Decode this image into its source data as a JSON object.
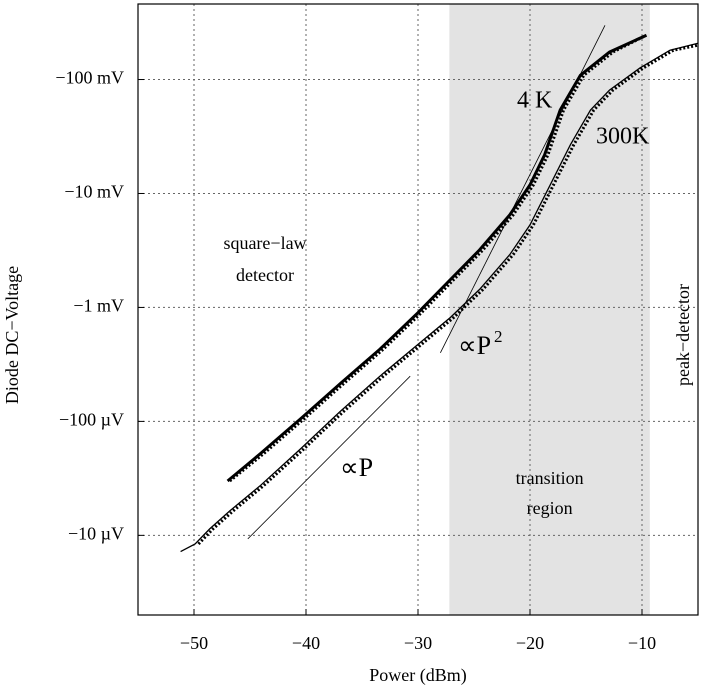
{
  "chart_data": {
    "type": "line",
    "xlabel": "Power (dBm)",
    "ylabel": "Diode DC−Voltage",
    "xlim": [
      -55,
      -5
    ],
    "ylim": [
      -0.002,
      -460
    ],
    "yscale": "log",
    "grid": true,
    "xticks": [
      {
        "value": -50,
        "label": "−50"
      },
      {
        "value": -40,
        "label": "−40"
      },
      {
        "value": -30,
        "label": "−30"
      },
      {
        "value": -20,
        "label": "−20"
      },
      {
        "value": -10,
        "label": "−10"
      }
    ],
    "yticks": [
      {
        "value": -0.01,
        "label": "−10 µV"
      },
      {
        "value": -0.1,
        "label": "−100 µV"
      },
      {
        "value": -1,
        "label": "−1 mV"
      },
      {
        "value": -10,
        "label": "−10 mV"
      },
      {
        "value": -100,
        "label": "−100 mV"
      }
    ],
    "shade": {
      "x": [
        -27.2,
        -9.3
      ],
      "color": "#e3e3e3",
      "label": [
        "transition",
        "region"
      ]
    },
    "series": [
      {
        "name": "4 K",
        "color": "#000000",
        "width": 3,
        "x": [
          -47.0,
          -44.1,
          -40.5,
          -37.0,
          -33.4,
          -30,
          -27.1,
          -24.5,
          -21.8,
          -20,
          -18.7,
          -17.3,
          -15.5,
          -12.9,
          -9.6
        ],
        "values": [
          -0.03,
          -0.0518,
          -0.105,
          -0.212,
          -0.43,
          -0.9,
          -1.76,
          -3.2,
          -6.5,
          -11.9,
          -21.8,
          -54,
          -109,
          -174,
          -245
        ]
      },
      {
        "color": "#000000",
        "width": 3,
        "dash": true,
        "x": [
          -46.8,
          -43.8,
          -40.2,
          -36.7,
          -33.1,
          -29.7,
          -26.8,
          -24.2,
          -21.5,
          -19.7,
          -18.4,
          -17.0,
          -15.2,
          -12.6,
          -9.8
        ],
        "values": [
          -0.03,
          -0.0518,
          -0.105,
          -0.212,
          -0.43,
          -0.9,
          -1.76,
          -3.2,
          -6.5,
          -11.9,
          -21.8,
          -54,
          -109,
          -174,
          -240
        ]
      },
      {
        "name": "300K",
        "color": "#000000",
        "width": 1.3,
        "x": [
          -51.2,
          -49.9,
          -48.6,
          -46.8,
          -44.1,
          -40.5,
          -37.0,
          -33.4,
          -30,
          -27.1,
          -24.5,
          -21.8,
          -20,
          -18.2,
          -16.4,
          -14.6,
          -12.9,
          -10.2,
          -7.5,
          -5
        ],
        "values": [
          -0.0072,
          -0.0084,
          -0.0114,
          -0.0164,
          -0.0272,
          -0.0573,
          -0.121,
          -0.249,
          -0.474,
          -0.818,
          -1.44,
          -2.91,
          -5.3,
          -11.9,
          -26.7,
          -54,
          -80.7,
          -126,
          -181,
          -208
        ]
      },
      {
        "color": "#000000",
        "width": 3,
        "dash": true,
        "x": [
          -49.6,
          -48.3,
          -46.5,
          -43.8,
          -40.2,
          -36.7,
          -33.1,
          -29.7,
          -26.8,
          -24.2,
          -21.5,
          -19.7,
          -17.9,
          -16.1,
          -14.3,
          -12.6,
          -9.9,
          -7.2,
          -5
        ],
        "values": [
          -0.0084,
          -0.0114,
          -0.0164,
          -0.0272,
          -0.0573,
          -0.121,
          -0.249,
          -0.474,
          -0.818,
          -1.44,
          -2.91,
          -5.3,
          -11.9,
          -26.7,
          -54,
          -80.7,
          -126,
          -181,
          -200
        ]
      }
    ],
    "guides": [
      {
        "label": "∝P",
        "x": [
          -45.2,
          -30.7
        ],
        "values": [
          -0.0093,
          -0.249
        ]
      },
      {
        "label": "∝P",
        "sup": "2",
        "x": [
          -28.0,
          -13.3
        ],
        "values": [
          -0.4,
          -299
        ]
      }
    ],
    "annotations": [
      {
        "lines": [
          "square−law",
          "detector"
        ]
      },
      {
        "text": "peak−detector"
      }
    ]
  }
}
